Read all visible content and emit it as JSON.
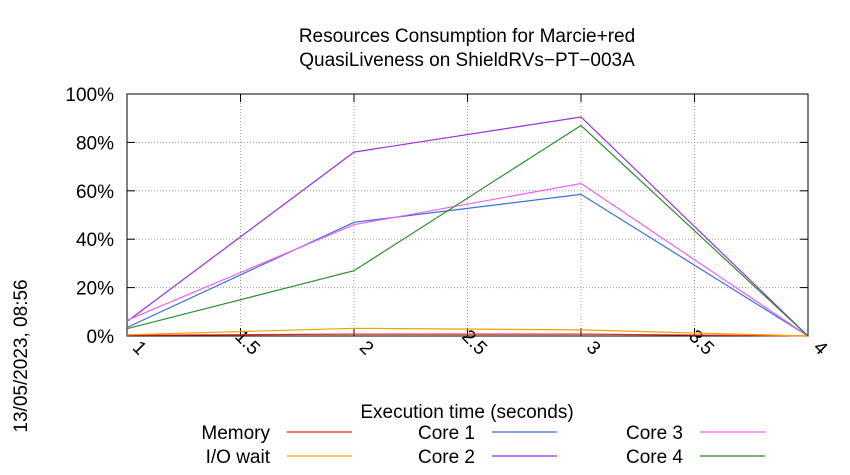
{
  "chart_data": {
    "type": "line",
    "title": "Resources Consumption for Marcie+red",
    "subtitle": "QuasiLiveness on ShieldRVs−PT−003A",
    "xlabel": "Execution time (seconds)",
    "ylabel": "",
    "side_label": "13/05/2023, 08:56",
    "xlim": [
      1,
      4
    ],
    "ylim": [
      0,
      100
    ],
    "x_ticks": [
      "1",
      "1.5",
      "2",
      "2.5",
      "3",
      "3.5",
      "4"
    ],
    "y_ticks": [
      "0%",
      "20%",
      "40%",
      "60%",
      "80%",
      "100%"
    ],
    "grid": true,
    "legend_position": "bottom",
    "x": [
      1,
      2,
      3,
      4
    ],
    "series": [
      {
        "name": "Memory",
        "color": "#e8251d",
        "values": [
          0.3,
          0.8,
          0.8,
          0
        ]
      },
      {
        "name": "I/O wait",
        "color": "#f2a200",
        "values": [
          0.5,
          3.2,
          2.5,
          0
        ]
      },
      {
        "name": "Core 1",
        "color": "#3c6fd6",
        "values": [
          3.5,
          47,
          58.5,
          0
        ]
      },
      {
        "name": "Core 2",
        "color": "#9b30e0",
        "values": [
          6,
          76,
          90.5,
          0
        ]
      },
      {
        "name": "Core 3",
        "color": "#f060f0",
        "values": [
          6.5,
          46,
          63,
          0
        ]
      },
      {
        "name": "Core 4",
        "color": "#2e8b2e",
        "values": [
          3,
          27,
          87,
          0
        ]
      }
    ]
  }
}
